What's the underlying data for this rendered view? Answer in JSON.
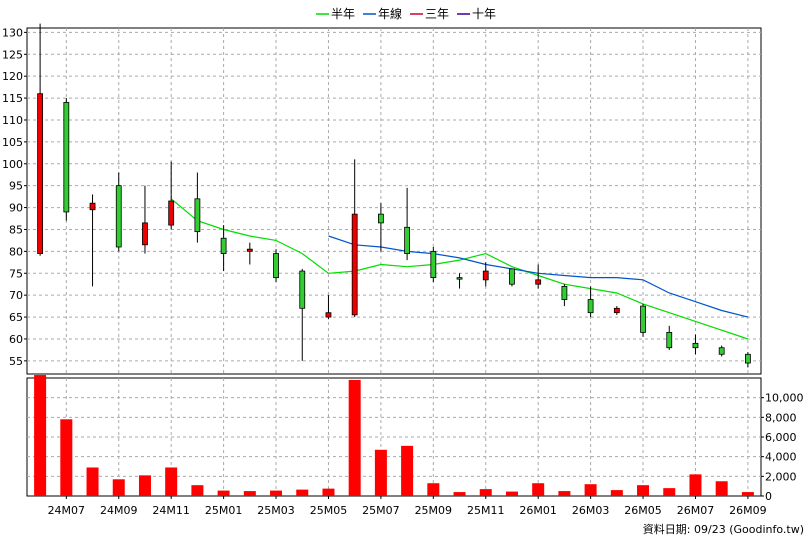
{
  "legend": [
    {
      "label": "半年",
      "color": "#00dd00"
    },
    {
      "label": "年線",
      "color": "#0055cc"
    },
    {
      "label": "三年",
      "color": "#cc0033"
    },
    {
      "label": "十年",
      "color": "#330099"
    }
  ],
  "footer_text": "資料日期: 09/23 (Goodinfo.tw)",
  "chart_data": {
    "type": "candlestick+bar",
    "title": "",
    "months": [
      "24M06",
      "24M07",
      "24M08",
      "24M09",
      "24M10",
      "24M11",
      "24M12",
      "25M01",
      "25M02",
      "25M03",
      "25M04",
      "25M05",
      "25M06",
      "25M07",
      "25M08",
      "25M09",
      "25M10",
      "25M11",
      "25M12",
      "26M01",
      "26M02",
      "26M03",
      "26M04",
      "26M05",
      "26M06",
      "26M07",
      "26M08",
      "26M09"
    ],
    "x_tick_labels": [
      {
        "index": 1,
        "label": "24M07"
      },
      {
        "index": 3,
        "label": "24M09"
      },
      {
        "index": 5,
        "label": "24M11"
      },
      {
        "index": 7,
        "label": "25M01"
      },
      {
        "index": 9,
        "label": "25M03"
      },
      {
        "index": 11,
        "label": "25M05"
      },
      {
        "index": 13,
        "label": "25M07"
      },
      {
        "index": 15,
        "label": "25M09"
      },
      {
        "index": 17,
        "label": "25M11"
      },
      {
        "index": 19,
        "label": "26M01"
      },
      {
        "index": 21,
        "label": "26M03"
      },
      {
        "index": 23,
        "label": "26M05"
      },
      {
        "index": 25,
        "label": "26M07"
      },
      {
        "index": 27,
        "label": "26M09"
      }
    ],
    "price_axis": {
      "min": 52,
      "max": 131,
      "ticks": [
        55,
        60,
        65,
        70,
        75,
        80,
        85,
        90,
        95,
        100,
        105,
        110,
        115,
        120,
        125,
        130
      ]
    },
    "volume_axis": {
      "min": 0,
      "max": 12000,
      "ticks": [
        0,
        2000,
        4000,
        6000,
        8000,
        10000
      ],
      "tick_labels": [
        "0",
        "2,000",
        "4,000",
        "6,000",
        "8,000",
        "10,000"
      ]
    },
    "candles": [
      {
        "open": 116,
        "high": 132,
        "low": 79,
        "close": 79.5
      },
      {
        "open": 89,
        "high": 115,
        "low": 87,
        "close": 114
      },
      {
        "open": 91,
        "high": 93,
        "low": 72,
        "close": 89.5
      },
      {
        "open": 81,
        "high": 98,
        "low": 80,
        "close": 95
      },
      {
        "open": 86.5,
        "high": 95,
        "low": 79.5,
        "close": 81.5
      },
      {
        "open": 91.5,
        "high": 100.5,
        "low": 85,
        "close": 86
      },
      {
        "open": 84.5,
        "high": 98,
        "low": 82,
        "close": 92
      },
      {
        "open": 79.5,
        "high": 86,
        "low": 75.5,
        "close": 83
      },
      {
        "open": 80.5,
        "high": 82,
        "low": 77,
        "close": 80
      },
      {
        "open": 74,
        "high": 80.5,
        "low": 73,
        "close": 79.5
      },
      {
        "open": 67,
        "high": 76,
        "low": 55,
        "close": 75.5
      },
      {
        "open": 66,
        "high": 70,
        "low": 64.5,
        "close": 65
      },
      {
        "open": 88.5,
        "high": 101,
        "low": 65,
        "close": 65.5
      },
      {
        "open": 86.5,
        "high": 91,
        "low": 80,
        "close": 88.5
      },
      {
        "open": 79.5,
        "high": 94.5,
        "low": 78,
        "close": 85.5
      },
      {
        "open": 74,
        "high": 81,
        "low": 73,
        "close": 80
      },
      {
        "open": 74,
        "high": 75,
        "low": 71.5,
        "close": 74
      },
      {
        "open": 75.5,
        "high": 77.5,
        "low": 72,
        "close": 73.5
      },
      {
        "open": 72.5,
        "high": 76,
        "low": 72,
        "close": 76
      },
      {
        "open": 73.5,
        "high": 77,
        "low": 71.5,
        "close": 72.5
      },
      {
        "open": 69,
        "high": 72.5,
        "low": 67.5,
        "close": 72
      },
      {
        "open": 66,
        "high": 72,
        "low": 65,
        "close": 69
      },
      {
        "open": 67,
        "high": 67.5,
        "low": 65.5,
        "close": 66
      },
      {
        "open": 61.5,
        "high": 68,
        "low": 60.5,
        "close": 67.5
      },
      {
        "open": 58,
        "high": 63,
        "low": 57.5,
        "close": 61.5
      },
      {
        "open": 58,
        "high": 61,
        "low": 56.5,
        "close": 59
      },
      {
        "open": 56.5,
        "high": 58.5,
        "low": 56,
        "close": 58
      },
      {
        "open": 54.5,
        "high": 57,
        "low": 53.5,
        "close": 56.5
      }
    ],
    "volumes": [
      12300,
      7800,
      2900,
      1700,
      2100,
      2900,
      1100,
      550,
      500,
      550,
      650,
      750,
      11800,
      4700,
      5100,
      1300,
      400,
      700,
      450,
      1300,
      500,
      1200,
      600,
      1100,
      800,
      2200,
      1500,
      400
    ],
    "series": [
      {
        "name": "半年",
        "color": "#00dd00",
        "values": [
          null,
          null,
          null,
          null,
          null,
          92,
          87,
          85,
          83.5,
          82.5,
          79.5,
          75,
          75.5,
          77,
          76.5,
          77,
          78,
          79.5,
          76.5,
          74.5,
          72.5,
          71.5,
          70.5,
          68,
          66,
          64,
          62,
          60
        ]
      },
      {
        "name": "年線",
        "color": "#0055cc",
        "values": [
          null,
          null,
          null,
          null,
          null,
          null,
          null,
          null,
          null,
          null,
          null,
          83.5,
          81.5,
          81,
          80,
          79.5,
          78.5,
          77,
          76,
          75,
          74.5,
          74,
          74,
          73.5,
          70.5,
          68.5,
          66.5,
          65
        ]
      },
      {
        "name": "三年",
        "color": "#cc0033",
        "values": []
      },
      {
        "name": "十年",
        "color": "#330099",
        "values": []
      }
    ]
  }
}
